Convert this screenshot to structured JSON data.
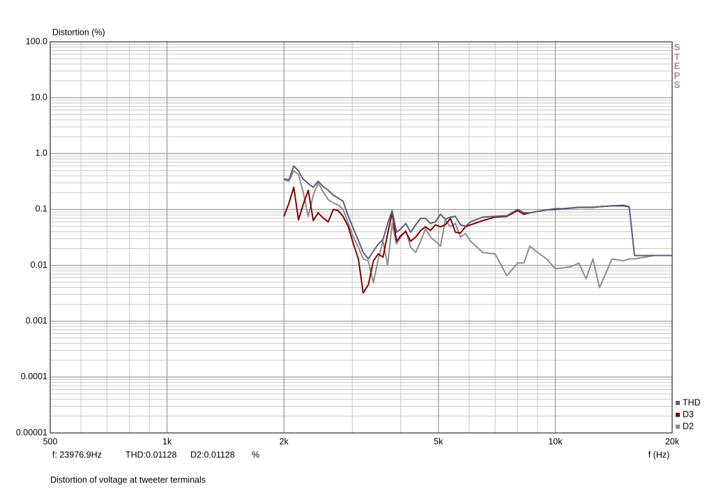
{
  "chart_data": {
    "type": "line",
    "title": "Distortion of voltage at tweeter terminals",
    "y_label": "Distortion (%)",
    "x_label": "f (Hz)",
    "annotations": [
      "STEPS",
      "f: 23976.9Hz",
      "THD:0.01128",
      "D2:0.01128",
      "%"
    ],
    "x": [
      2000,
      2060,
      2120,
      2180,
      2240,
      2310,
      2380,
      2450,
      2520,
      2600,
      2680,
      2760,
      2840,
      2930,
      3020,
      3110,
      3200,
      3300,
      3400,
      3500,
      3600,
      3700,
      3800,
      3900,
      4000,
      4120,
      4240,
      4370,
      4500,
      4630,
      4770,
      4910,
      5060,
      5210,
      5370,
      5530,
      5700,
      5870,
      6050,
      6500,
      7000,
      7500,
      8000,
      8300,
      8600,
      9000,
      9500,
      10000,
      10500,
      11000,
      11500,
      12000,
      12500,
      13000,
      14000,
      15000,
      15500,
      16000,
      17000,
      18000,
      19000,
      20000
    ],
    "series": [
      {
        "name": "THD",
        "color": "#5c5c7e",
        "values": [
          0.35,
          0.34,
          0.6,
          0.49,
          0.35,
          0.29,
          0.25,
          0.32,
          0.26,
          0.22,
          0.18,
          0.16,
          0.14,
          0.075,
          0.045,
          0.028,
          0.017,
          0.013,
          0.018,
          0.024,
          0.029,
          0.056,
          0.095,
          0.039,
          0.045,
          0.056,
          0.039,
          0.053,
          0.069,
          0.069,
          0.056,
          0.06,
          0.082,
          0.067,
          0.073,
          0.075,
          0.053,
          0.05,
          0.06,
          0.073,
          0.075,
          0.077,
          0.1,
          0.087,
          0.087,
          0.092,
          0.098,
          0.103,
          0.103,
          0.106,
          0.109,
          0.109,
          0.109,
          0.112,
          0.116,
          0.119,
          0.112,
          0.015,
          0.015,
          0.015,
          0.015,
          0.015
        ]
      },
      {
        "name": "D3",
        "color": "#800000",
        "values": [
          0.075,
          0.13,
          0.25,
          0.065,
          0.12,
          0.22,
          0.063,
          0.087,
          0.071,
          0.06,
          0.1,
          0.095,
          0.075,
          0.049,
          0.024,
          0.013,
          0.0032,
          0.0045,
          0.012,
          0.016,
          0.014,
          0.037,
          0.087,
          0.027,
          0.034,
          0.04,
          0.027,
          0.032,
          0.042,
          0.049,
          0.042,
          0.053,
          0.049,
          0.053,
          0.069,
          0.039,
          0.038,
          0.049,
          0.053,
          0.063,
          0.073,
          0.075,
          0.095,
          0.082,
          0.087,
          0.092,
          0.098,
          0.1,
          0.103,
          0.106,
          0.109,
          0.109,
          0.109,
          0.112,
          0.116,
          0.116,
          0.112,
          null,
          null,
          null,
          null,
          null
        ]
      },
      {
        "name": "D2",
        "color": "#8c8c8c",
        "values": [
          0.34,
          0.32,
          0.49,
          0.42,
          0.21,
          0.075,
          0.18,
          0.3,
          0.21,
          0.15,
          0.13,
          0.12,
          0.1,
          0.056,
          0.032,
          0.021,
          0.013,
          0.012,
          0.0049,
          0.013,
          0.027,
          0.01,
          0.056,
          0.024,
          0.032,
          0.042,
          0.021,
          0.017,
          0.027,
          0.045,
          0.032,
          0.027,
          0.022,
          0.065,
          0.049,
          0.056,
          0.032,
          0.037,
          0.027,
          0.017,
          0.016,
          0.0065,
          0.011,
          0.011,
          0.022,
          0.017,
          0.013,
          0.0087,
          0.009,
          0.0095,
          0.011,
          0.0057,
          0.013,
          0.004,
          0.013,
          0.012,
          0.013,
          0.013,
          0.014,
          0.015,
          0.015,
          0.015
        ]
      }
    ],
    "xlim": [
      500,
      20000
    ],
    "ylim": [
      1e-05,
      100
    ],
    "xticks": [
      500,
      {
        "value": 1000,
        "label": "1k"
      },
      {
        "value": 2000,
        "label": "2k"
      },
      {
        "value": 5000,
        "label": "5k"
      },
      {
        "value": 10000,
        "label": "10k"
      },
      {
        "value": 20000,
        "label": "20k"
      }
    ],
    "yticks": [
      {
        "value": 100,
        "label": "100.0"
      },
      {
        "value": 10,
        "label": "10.0"
      },
      {
        "value": 1,
        "label": "1.0"
      },
      0.1,
      0.01,
      0.001,
      0.0001,
      {
        "value": 1e-05,
        "label": "0.00001"
      }
    ],
    "xscale": "log",
    "yscale": "log",
    "grid": true,
    "minor_grid": true,
    "legend": "lower right"
  }
}
